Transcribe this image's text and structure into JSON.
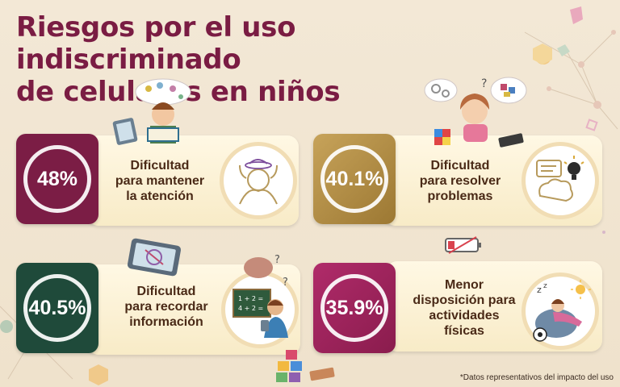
{
  "title": {
    "line1": "Riesgos por el uso indiscriminado",
    "line2": "de celulares en niños"
  },
  "cards": [
    {
      "value": "48%",
      "label_lines": [
        "Dificultad",
        "para mantener",
        "la atención"
      ],
      "icon": "distracted-head-icon",
      "color": "#7b1d45"
    },
    {
      "value": "40.1%",
      "label_lines": [
        "Dificultad",
        "para resolver",
        "problemas"
      ],
      "icon": "brain-idea-icon",
      "color": "#b18a3f"
    },
    {
      "value": "40.5%",
      "label_lines": [
        "Dificultad",
        "para recordar",
        "información"
      ],
      "icon": "child-chalkboard-icon",
      "color": "#1f4a3a"
    },
    {
      "value": "35.9%",
      "label_lines": [
        "Menor",
        "disposición para",
        "actividades",
        "físicas"
      ],
      "icon": "child-beanbag-icon",
      "color": "#9b1f5a"
    }
  ],
  "illustrations": {
    "chalkboard_line1": "1 + 2 =",
    "chalkboard_line2": "4 + 2 ="
  },
  "footnote": "*Datos representativos del impacto del uso"
}
